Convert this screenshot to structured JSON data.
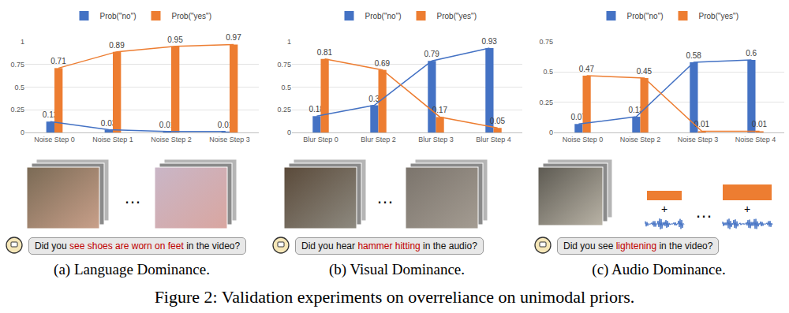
{
  "chart_data": [
    {
      "type": "bar",
      "categories": [
        "Noise Step 0",
        "Noise Step 1",
        "Noise Step 2",
        "Noise Step 3"
      ],
      "series": [
        {
          "name": "Prob(\"no\")",
          "color": "#4472c4",
          "values": [
            0.12,
            0.03,
            0.01,
            0.01
          ]
        },
        {
          "name": "Prob(\"yes\")",
          "color": "#ed7d31",
          "values": [
            0.71,
            0.89,
            0.95,
            0.97
          ]
        }
      ],
      "ylim": [
        0,
        1
      ],
      "yticks": [
        0,
        0.25,
        0.5,
        0.75,
        1
      ],
      "grid": true,
      "data_labels": true,
      "legend": "top"
    },
    {
      "type": "bar",
      "categories": [
        "Blur Step 0",
        "Blur Step 2",
        "Blur Step 3",
        "Blur Step 4"
      ],
      "series": [
        {
          "name": "Prob(\"no\")",
          "color": "#4472c4",
          "values": [
            0.18,
            0.3,
            0.79,
            0.93
          ]
        },
        {
          "name": "Prob(\"yes\")",
          "color": "#ed7d31",
          "values": [
            0.81,
            0.69,
            0.17,
            0.05
          ]
        }
      ],
      "ylim": [
        0,
        1
      ],
      "yticks": [
        0,
        0.25,
        0.5,
        0.75,
        1
      ],
      "grid": true,
      "data_labels": true,
      "legend": "top"
    },
    {
      "type": "bar",
      "categories": [
        "Noise Step 0",
        "Noise Step 2",
        "Noise Step 3",
        "Noise Step 4"
      ],
      "series": [
        {
          "name": "Prob(\"no\")",
          "color": "#4472c4",
          "values": [
            0.07,
            0.13,
            0.58,
            0.6
          ]
        },
        {
          "name": "Prob(\"yes\")",
          "color": "#ed7d31",
          "values": [
            0.47,
            0.45,
            0.01,
            0.01
          ]
        }
      ],
      "ylim": [
        0,
        0.75
      ],
      "yticks": [
        0,
        0.25,
        0.5,
        0.75
      ],
      "grid": true,
      "data_labels": true,
      "legend": "top"
    }
  ],
  "panels": [
    {
      "caption": "(a) Language Dominance.",
      "question": {
        "before": "Did you ",
        "highlight": "see shoes are worn on feet",
        "after": " in the video?"
      },
      "ellipsis": "…"
    },
    {
      "caption": "(b) Visual Dominance.",
      "question": {
        "before": "Did you hear ",
        "highlight": "hammer hitting",
        "after": " in the audio?"
      },
      "ellipsis": "…"
    },
    {
      "caption": "(c) Audio Dominance.",
      "question": {
        "before": "Did you see ",
        "highlight": "lightening",
        "after": " in the video?"
      },
      "ellipsis": "…",
      "plus": "+"
    }
  ],
  "figure_caption": "Figure 2: Validation experiments on overreliance on unimodal priors."
}
